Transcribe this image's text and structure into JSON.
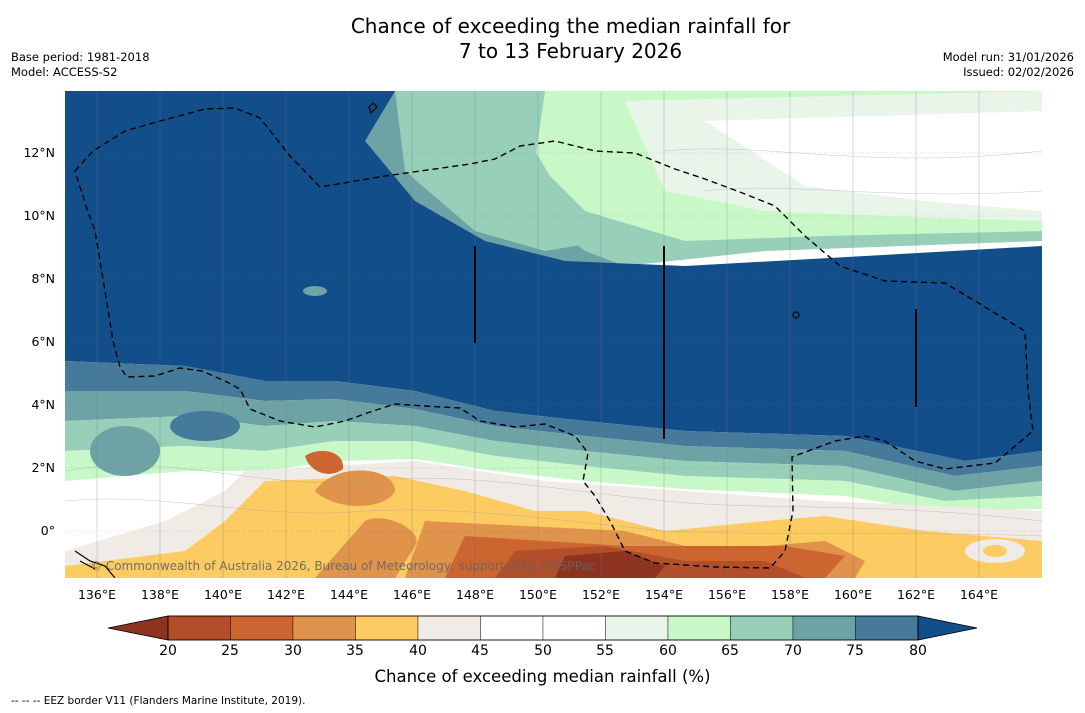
{
  "header": {
    "title_line1": "Chance of exceeding the median rainfall for",
    "title_line2": "7 to 13 February 2026",
    "base_period": "Base period: 1981-2018",
    "model": "Model: ACCESS-S2",
    "model_run": "Model run: 31/01/2026",
    "issued": "Issued: 02/02/2026"
  },
  "map": {
    "lat_labels": [
      "12°N",
      "10°N",
      "8°N",
      "6°N",
      "4°N",
      "2°N",
      "0°"
    ],
    "lon_labels": [
      "136°E",
      "138°E",
      "140°E",
      "142°E",
      "144°E",
      "146°E",
      "148°E",
      "150°E",
      "152°E",
      "154°E",
      "156°E",
      "158°E",
      "160°E",
      "162°E",
      "164°E"
    ],
    "copyright": "© Commonwealth of Australia 2026, Bureau of Meteorology, supported by COSPPac"
  },
  "colorbar": {
    "title": "Chance of exceeding median rainfall (%)",
    "ticks": [
      "20",
      "25",
      "30",
      "35",
      "40",
      "45",
      "50",
      "55",
      "60",
      "65",
      "70",
      "75",
      "80"
    ],
    "colors": [
      "#8c3420",
      "#b24e2a",
      "#cc6530",
      "#e0934a",
      "#fccb62",
      "#f1ebe6",
      "#ffffff",
      "#ffffff",
      "#eaf5ea",
      "#c8f8c8",
      "#98cfb9",
      "#6ea3a6",
      "#457a9a",
      "#124e8a"
    ]
  },
  "footnote": "--  --  -- EEZ border V11 (Flanders Marine Institute, 2019)."
}
